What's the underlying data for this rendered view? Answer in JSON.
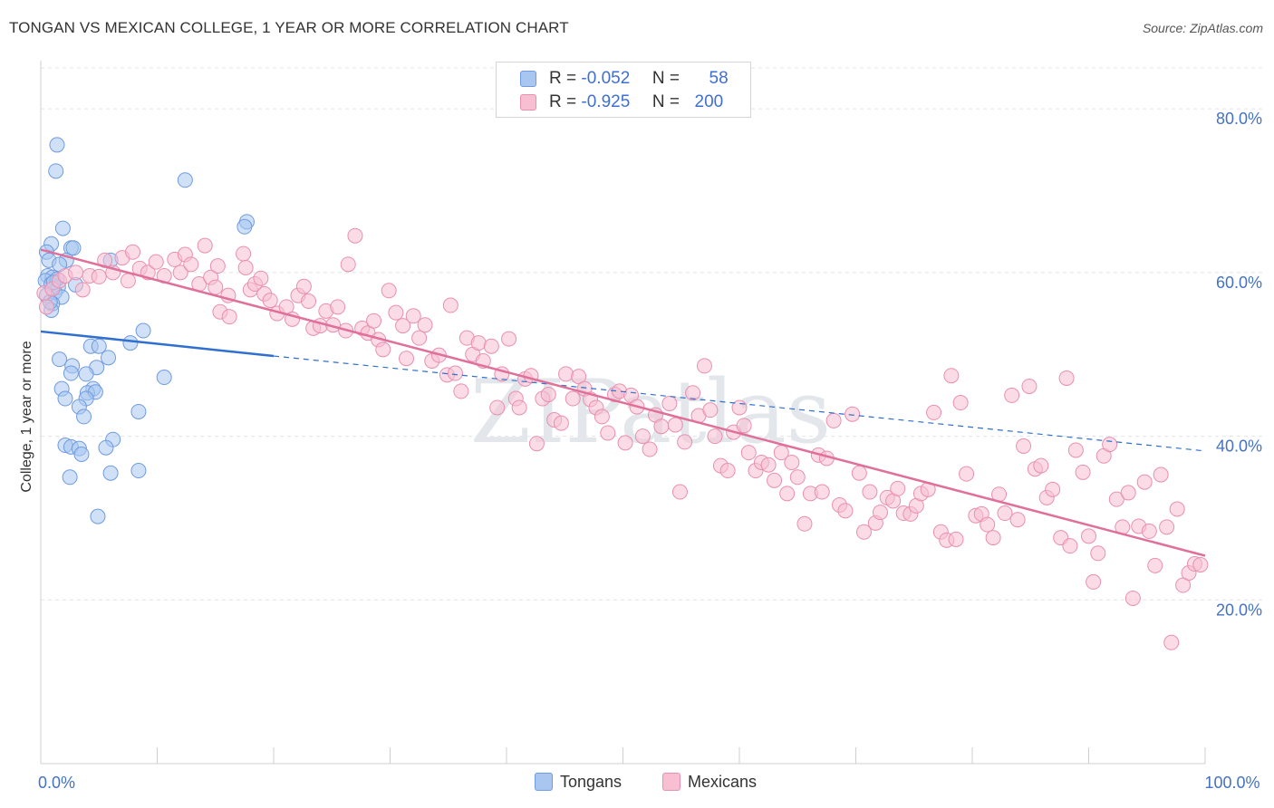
{
  "title": "TONGAN VS MEXICAN COLLEGE, 1 YEAR OR MORE CORRELATION CHART",
  "source": "Source: ZipAtlas.com",
  "watermark": "ZIPatlas",
  "legend": {
    "rows": [
      {
        "r_label": "R =",
        "r_value": "-0.052",
        "n_label": "N =",
        "n_value": "58",
        "color": "#a8c6f0",
        "border": "#6f9be0"
      },
      {
        "r_label": "R =",
        "r_value": "-0.925",
        "n_label": "N =",
        "n_value": "200",
        "color": "#f7bfd1",
        "border": "#e98fb0"
      }
    ]
  },
  "bottom_legend": [
    {
      "label": "Tongans",
      "color": "#a8c6f0",
      "border": "#6f9be0"
    },
    {
      "label": "Mexicans",
      "color": "#f7bfd1",
      "border": "#e98fb0"
    }
  ],
  "chart_data": {
    "type": "scatter",
    "title": "TONGAN VS MEXICAN COLLEGE, 1 YEAR OR MORE CORRELATION CHART",
    "xlabel": "",
    "ylabel": "College, 1 year or more",
    "xlim": [
      0,
      100
    ],
    "ylim": [
      0,
      85
    ],
    "x_tick_labels": [
      {
        "value": 0,
        "label": "0.0%"
      },
      {
        "value": 100,
        "label": "100.0%"
      }
    ],
    "y_tick_labels": [
      {
        "value": 20,
        "label": "20.0%"
      },
      {
        "value": 40,
        "label": "40.0%"
      },
      {
        "value": 60,
        "label": "60.0%"
      },
      {
        "value": 80,
        "label": "80.0%"
      }
    ],
    "grid": true,
    "series": [
      {
        "name": "Tongans",
        "color": "#6f9be0",
        "fill": "#a8c6f0",
        "trend": {
          "x": [
            0,
            20
          ],
          "y": [
            52.8,
            49.8
          ],
          "dashed_to": [
            100,
            38.2
          ]
        },
        "points": [
          [
            1.4,
            75.6
          ],
          [
            1.3,
            72.4
          ],
          [
            12.4,
            71.3
          ],
          [
            17.7,
            66.2
          ],
          [
            17.5,
            65.6
          ],
          [
            1.9,
            65.4
          ],
          [
            0.9,
            63.5
          ],
          [
            2.6,
            63.0
          ],
          [
            2.8,
            63.0
          ],
          [
            0.5,
            62.5
          ],
          [
            0.7,
            61.5
          ],
          [
            2.2,
            61.5
          ],
          [
            6.0,
            61.5
          ],
          [
            1.6,
            61.0
          ],
          [
            0.6,
            59.6
          ],
          [
            1.0,
            59.4
          ],
          [
            0.4,
            59.0
          ],
          [
            0.9,
            58.6
          ],
          [
            1.5,
            58.2
          ],
          [
            1.2,
            57.6
          ],
          [
            0.5,
            57.2
          ],
          [
            1.8,
            57.0
          ],
          [
            1.0,
            56.2
          ],
          [
            0.9,
            55.4
          ],
          [
            8.8,
            52.9
          ],
          [
            7.7,
            51.4
          ],
          [
            4.3,
            51.0
          ],
          [
            5.0,
            51.0
          ],
          [
            1.6,
            49.4
          ],
          [
            5.8,
            49.6
          ],
          [
            2.7,
            48.6
          ],
          [
            4.8,
            48.4
          ],
          [
            2.6,
            47.7
          ],
          [
            3.9,
            47.6
          ],
          [
            10.6,
            47.2
          ],
          [
            1.8,
            45.8
          ],
          [
            4.5,
            45.8
          ],
          [
            4.0,
            45.3
          ],
          [
            4.7,
            45.4
          ],
          [
            2.1,
            44.6
          ],
          [
            3.9,
            44.6
          ],
          [
            3.3,
            43.6
          ],
          [
            8.4,
            43.0
          ],
          [
            3.7,
            42.4
          ],
          [
            6.2,
            39.6
          ],
          [
            2.1,
            38.9
          ],
          [
            2.6,
            38.7
          ],
          [
            5.6,
            38.6
          ],
          [
            3.3,
            38.5
          ],
          [
            3.5,
            37.8
          ],
          [
            6.0,
            35.5
          ],
          [
            8.4,
            35.8
          ],
          [
            2.5,
            35.0
          ],
          [
            4.9,
            30.2
          ],
          [
            1.4,
            59.2
          ],
          [
            3.0,
            58.5
          ],
          [
            0.8,
            56.4
          ],
          [
            1.1,
            58.8
          ]
        ]
      },
      {
        "name": "Mexicans",
        "color": "#e98fb0",
        "fill": "#f7bfd1",
        "trend": {
          "x": [
            0,
            100
          ],
          "y": [
            62.8,
            25.4
          ]
        },
        "points": [
          [
            0.3,
            57.5
          ],
          [
            0.5,
            55.8
          ],
          [
            1.0,
            58.0
          ],
          [
            1.6,
            59.0
          ],
          [
            2.1,
            59.6
          ],
          [
            3.0,
            60.0
          ],
          [
            3.6,
            57.9
          ],
          [
            4.2,
            59.6
          ],
          [
            5.0,
            59.5
          ],
          [
            5.5,
            61.5
          ],
          [
            6.2,
            60.0
          ],
          [
            7.0,
            61.8
          ],
          [
            7.5,
            59.0
          ],
          [
            7.9,
            62.5
          ],
          [
            8.5,
            60.5
          ],
          [
            9.2,
            60.0
          ],
          [
            9.9,
            61.3
          ],
          [
            10.6,
            59.6
          ],
          [
            11.5,
            61.6
          ],
          [
            12.4,
            62.2
          ],
          [
            12.0,
            60.0
          ],
          [
            12.9,
            61.0
          ],
          [
            13.6,
            58.6
          ],
          [
            14.1,
            63.3
          ],
          [
            14.6,
            59.4
          ],
          [
            15.0,
            58.2
          ],
          [
            15.2,
            60.8
          ],
          [
            15.4,
            55.2
          ],
          [
            16.2,
            54.6
          ],
          [
            16.1,
            57.2
          ],
          [
            17.4,
            62.3
          ],
          [
            17.6,
            60.6
          ],
          [
            18.0,
            57.9
          ],
          [
            18.4,
            58.6
          ],
          [
            18.9,
            59.3
          ],
          [
            19.2,
            57.4
          ],
          [
            19.7,
            56.6
          ],
          [
            20.3,
            55.0
          ],
          [
            21.1,
            55.8
          ],
          [
            21.6,
            54.3
          ],
          [
            22.1,
            57.2
          ],
          [
            22.6,
            58.3
          ],
          [
            23.0,
            56.5
          ],
          [
            23.4,
            53.2
          ],
          [
            24.0,
            53.5
          ],
          [
            24.5,
            55.3
          ],
          [
            25.1,
            53.6
          ],
          [
            25.5,
            55.8
          ],
          [
            26.2,
            52.9
          ],
          [
            26.4,
            61.0
          ],
          [
            27.0,
            64.5
          ],
          [
            27.6,
            53.2
          ],
          [
            28.1,
            52.6
          ],
          [
            28.6,
            54.1
          ],
          [
            29.0,
            51.8
          ],
          [
            29.4,
            50.6
          ],
          [
            29.9,
            57.8
          ],
          [
            30.5,
            55.1
          ],
          [
            31.1,
            53.5
          ],
          [
            31.4,
            49.5
          ],
          [
            32.0,
            54.7
          ],
          [
            32.5,
            52.0
          ],
          [
            33.0,
            53.6
          ],
          [
            33.6,
            49.2
          ],
          [
            34.2,
            49.9
          ],
          [
            34.9,
            47.5
          ],
          [
            35.2,
            56.0
          ],
          [
            35.6,
            47.7
          ],
          [
            36.1,
            45.5
          ],
          [
            36.6,
            52.0
          ],
          [
            37.1,
            50.0
          ],
          [
            37.6,
            51.4
          ],
          [
            38.0,
            49.2
          ],
          [
            38.7,
            51.0
          ],
          [
            39.2,
            43.5
          ],
          [
            39.6,
            47.6
          ],
          [
            40.2,
            51.9
          ],
          [
            40.8,
            44.6
          ],
          [
            41.1,
            43.5
          ],
          [
            41.6,
            47.0
          ],
          [
            42.1,
            47.4
          ],
          [
            42.6,
            39.1
          ],
          [
            43.1,
            44.6
          ],
          [
            43.6,
            45.1
          ],
          [
            44.1,
            42.0
          ],
          [
            44.7,
            41.6
          ],
          [
            45.1,
            47.6
          ],
          [
            45.7,
            44.6
          ],
          [
            46.2,
            47.3
          ],
          [
            46.7,
            45.8
          ],
          [
            47.2,
            44.5
          ],
          [
            47.7,
            43.5
          ],
          [
            48.2,
            42.4
          ],
          [
            48.7,
            40.4
          ],
          [
            49.3,
            45.1
          ],
          [
            49.7,
            45.5
          ],
          [
            50.2,
            39.2
          ],
          [
            50.7,
            45.0
          ],
          [
            51.2,
            43.6
          ],
          [
            51.7,
            40.0
          ],
          [
            52.3,
            38.4
          ],
          [
            52.8,
            42.6
          ],
          [
            53.3,
            41.2
          ],
          [
            54.0,
            44.0
          ],
          [
            54.5,
            41.4
          ],
          [
            54.9,
            33.2
          ],
          [
            55.3,
            39.3
          ],
          [
            56.0,
            45.3
          ],
          [
            56.5,
            42.5
          ],
          [
            57.0,
            48.6
          ],
          [
            57.5,
            43.2
          ],
          [
            57.9,
            40.0
          ],
          [
            58.4,
            36.4
          ],
          [
            59.0,
            35.8
          ],
          [
            59.5,
            40.5
          ],
          [
            60.0,
            43.5
          ],
          [
            60.4,
            41.3
          ],
          [
            60.8,
            38.0
          ],
          [
            61.4,
            35.8
          ],
          [
            61.9,
            36.8
          ],
          [
            62.5,
            36.5
          ],
          [
            63.0,
            34.6
          ],
          [
            63.6,
            38.0
          ],
          [
            64.1,
            33.0
          ],
          [
            64.5,
            36.8
          ],
          [
            65.0,
            35.0
          ],
          [
            65.6,
            29.3
          ],
          [
            66.1,
            33.0
          ],
          [
            66.8,
            37.7
          ],
          [
            67.1,
            33.2
          ],
          [
            67.5,
            37.3
          ],
          [
            68.1,
            41.9
          ],
          [
            68.6,
            31.6
          ],
          [
            69.1,
            30.9
          ],
          [
            69.7,
            42.7
          ],
          [
            70.3,
            35.5
          ],
          [
            70.7,
            28.3
          ],
          [
            71.2,
            33.2
          ],
          [
            71.7,
            29.4
          ],
          [
            72.1,
            30.7
          ],
          [
            72.7,
            32.5
          ],
          [
            73.2,
            32.1
          ],
          [
            73.6,
            33.6
          ],
          [
            74.1,
            30.6
          ],
          [
            74.7,
            30.5
          ],
          [
            75.2,
            31.5
          ],
          [
            75.6,
            33.0
          ],
          [
            76.2,
            33.5
          ],
          [
            76.7,
            42.9
          ],
          [
            77.3,
            28.3
          ],
          [
            77.8,
            27.3
          ],
          [
            78.2,
            47.4
          ],
          [
            78.6,
            27.4
          ],
          [
            79.0,
            44.1
          ],
          [
            79.5,
            35.4
          ],
          [
            80.3,
            30.3
          ],
          [
            80.8,
            30.5
          ],
          [
            81.3,
            29.2
          ],
          [
            81.8,
            27.6
          ],
          [
            82.3,
            32.9
          ],
          [
            82.8,
            30.6
          ],
          [
            83.4,
            45.0
          ],
          [
            83.9,
            29.8
          ],
          [
            84.4,
            38.8
          ],
          [
            84.9,
            46.1
          ],
          [
            85.4,
            36.0
          ],
          [
            85.9,
            36.4
          ],
          [
            86.4,
            32.5
          ],
          [
            86.9,
            33.5
          ],
          [
            87.6,
            27.6
          ],
          [
            88.1,
            47.1
          ],
          [
            88.4,
            26.6
          ],
          [
            88.9,
            38.3
          ],
          [
            89.5,
            35.6
          ],
          [
            90.0,
            27.8
          ],
          [
            90.4,
            22.2
          ],
          [
            90.8,
            25.7
          ],
          [
            91.3,
            37.6
          ],
          [
            91.8,
            39.0
          ],
          [
            92.4,
            32.3
          ],
          [
            92.9,
            28.9
          ],
          [
            93.4,
            33.1
          ],
          [
            93.8,
            20.2
          ],
          [
            94.3,
            29.0
          ],
          [
            94.8,
            34.4
          ],
          [
            95.2,
            28.4
          ],
          [
            95.7,
            24.2
          ],
          [
            96.2,
            35.3
          ],
          [
            96.7,
            28.9
          ],
          [
            97.1,
            14.8
          ],
          [
            97.6,
            31.1
          ],
          [
            98.1,
            21.8
          ],
          [
            98.6,
            23.3
          ],
          [
            99.1,
            24.4
          ],
          [
            99.6,
            24.3
          ]
        ]
      }
    ]
  }
}
